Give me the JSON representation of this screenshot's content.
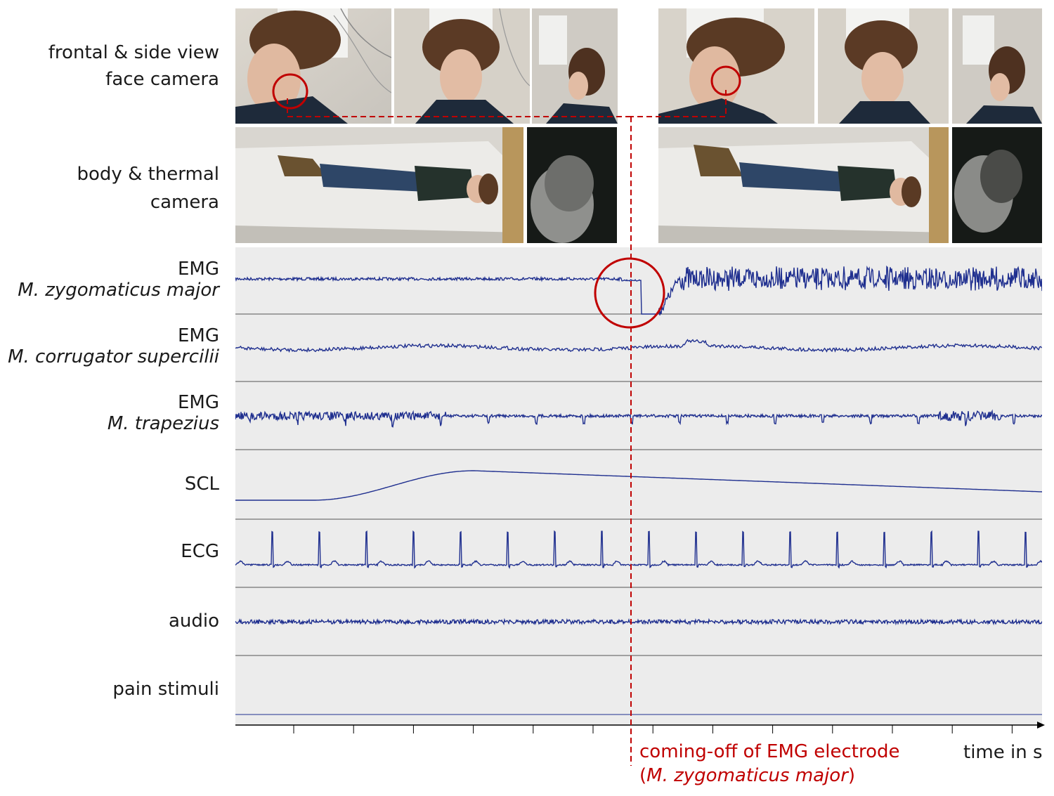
{
  "rows": {
    "face_camera": [
      "frontal & side view",
      "face camera"
    ],
    "body_camera": [
      "body & thermal",
      "camera"
    ],
    "emg_zygomaticus": {
      "title": "EMG",
      "muscle": "M. zygomaticus major"
    },
    "emg_corrugator": {
      "title": "EMG",
      "muscle": "M. corrugator supercilii"
    },
    "emg_trapezius": {
      "title": "EMG",
      "muscle": "M. trapezius"
    },
    "scl": "SCL",
    "ecg": "ECG",
    "audio": "audio",
    "pain": "pain stimuli"
  },
  "annotation": {
    "line1": "coming-off of EMG electrode",
    "open_paren": "(",
    "muscle": "M. zygomaticus major",
    "close_paren": ")"
  },
  "x_axis": {
    "label": "time in s",
    "tick_count": 13
  },
  "colors": {
    "signal": "#1f2f8f",
    "annotation": "#c00000",
    "panel": "#ececec"
  }
}
